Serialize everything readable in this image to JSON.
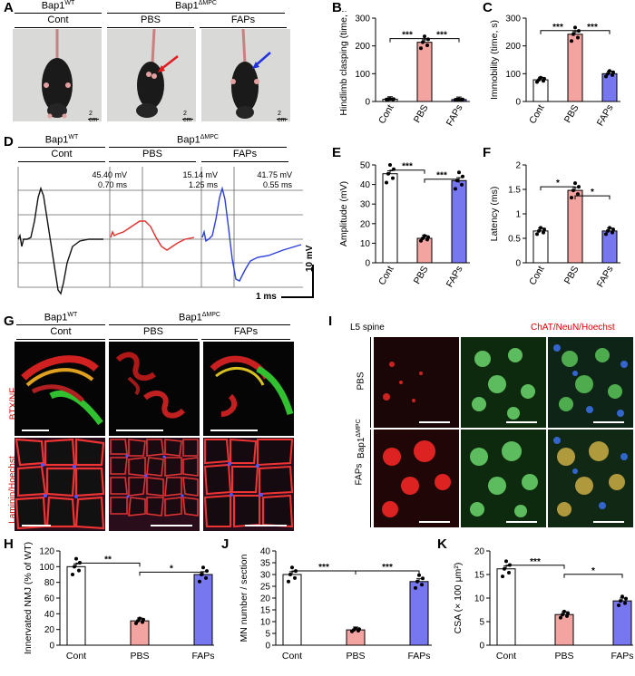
{
  "panels": {
    "A": "A",
    "B": "B",
    "C": "C",
    "D": "D",
    "E": "E",
    "F": "F",
    "G": "G",
    "H": "H",
    "I": "I",
    "J": "J",
    "K": "K"
  },
  "genotype": {
    "wt": "Bap1",
    "wt_sup": "WT",
    "mut": "Bap1",
    "mut_sup": "ΔMPC"
  },
  "groups": {
    "cont": "Cont",
    "pbs": "PBS",
    "faps": "FAPs"
  },
  "scale_bar_photo": "2 cm",
  "trace_d": {
    "cont": {
      "mv": "45.40 mV",
      "ms": "0.70 ms"
    },
    "pbs": {
      "mv": "15.14 mV",
      "ms": "1.25 ms"
    },
    "faps": {
      "mv": "41.75 mV",
      "ms": "0.55 ms"
    },
    "scale_y": "10 mV",
    "scale_x": "1 ms"
  },
  "panel_g": {
    "stain_top": "BTX/NF",
    "stain_bottom": "Laminin/Hoechst"
  },
  "panel_i": {
    "region": "L5 spine",
    "stain": "ChAT/NeuN/Hoechst",
    "row_pbs": "PBS",
    "row_faps": "FAPs",
    "side": "Bap1",
    "side_sup": "ΔMPC"
  },
  "colors": {
    "cont": "#ffffff",
    "pbs": "#f3a3a0",
    "faps": "#7777f0",
    "arrow_red": "#e31a1c",
    "arrow_blue": "#2233dd"
  },
  "chart_data": [
    {
      "panel": "B",
      "type": "bar",
      "categories": [
        "Cont",
        "PBS",
        "FAPs"
      ],
      "values": [
        8,
        213,
        7
      ],
      "ylabel": "Hindlimb clasping (time, s)",
      "ylim": [
        0,
        300
      ],
      "yticks": [
        0,
        100,
        200,
        300
      ],
      "significance": [
        "***",
        "***"
      ]
    },
    {
      "panel": "C",
      "type": "bar",
      "categories": [
        "Cont",
        "PBS",
        "FAPs"
      ],
      "values": [
        78,
        242,
        100
      ],
      "ylabel": "Immobility (time, s)",
      "ylim": [
        0,
        300
      ],
      "yticks": [
        0,
        100,
        200,
        300
      ],
      "significance": [
        "***",
        "***"
      ]
    },
    {
      "panel": "E",
      "type": "bar",
      "categories": [
        "Cont",
        "PBS",
        "FAPs"
      ],
      "values": [
        45.5,
        12.5,
        42
      ],
      "ylabel": "Amplitude (mV)",
      "ylim": [
        0,
        50
      ],
      "yticks": [
        0,
        10,
        20,
        30,
        40,
        50
      ],
      "significance": [
        "***",
        "***"
      ]
    },
    {
      "panel": "F",
      "type": "bar",
      "categories": [
        "Cont",
        "PBS",
        "FAPs"
      ],
      "values": [
        0.65,
        1.48,
        0.65
      ],
      "ylabel": "Latency (ms)",
      "ylim": [
        0,
        2
      ],
      "yticks": [
        0,
        0.5,
        1.0,
        1.5,
        2.0
      ],
      "significance": [
        "*",
        "*"
      ]
    },
    {
      "panel": "H",
      "type": "bar",
      "categories": [
        "Cont",
        "PBS",
        "FAPs"
      ],
      "values": [
        100,
        31,
        90
      ],
      "ylabel": "Innervated NMJ (% of WT)",
      "ylim": [
        0,
        120
      ],
      "yticks": [
        0,
        20,
        40,
        60,
        80,
        100,
        120
      ],
      "significance": [
        "**",
        "*"
      ]
    },
    {
      "panel": "J",
      "type": "bar",
      "categories": [
        "Cont",
        "PBS",
        "FAPs"
      ],
      "values": [
        30,
        6.5,
        27
      ],
      "ylabel": "MN number / section",
      "ylim": [
        0,
        40
      ],
      "yticks": [
        0,
        5,
        10,
        15,
        20,
        25,
        30,
        35,
        40
      ],
      "significance": [
        "***",
        "***"
      ]
    },
    {
      "panel": "K",
      "type": "bar",
      "categories": [
        "Cont",
        "PBS",
        "FAPs"
      ],
      "values": [
        16.2,
        6.5,
        9.4
      ],
      "ylabel": "CSA (× 100 μm²)",
      "ylim": [
        0,
        20
      ],
      "yticks": [
        0,
        5,
        10,
        15,
        20
      ],
      "significance": [
        "***",
        "*"
      ]
    }
  ]
}
